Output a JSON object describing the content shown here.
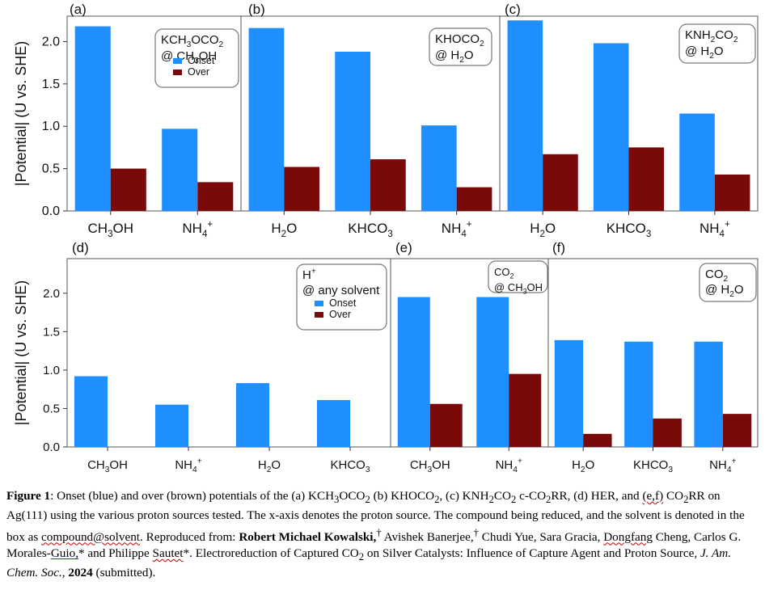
{
  "chart_data": {
    "ylabel": "|Potential| (U vs. SHE)",
    "colors": {
      "onset": "#1f8fff",
      "over": "#7a0a0a",
      "axis": "#555555"
    },
    "legend_labels": {
      "onset": "Onset",
      "over": "Over"
    },
    "rows": [
      {
        "ylim": [
          0,
          2.3
        ],
        "yticks": [
          "0.0",
          "0.5",
          "1.0",
          "1.5",
          "2.0"
        ],
        "panels": [
          {
            "label": "(a)",
            "box_lines": [
              [
                [
                  "KCH",
                  "n"
                ],
                [
                  "3",
                  "sub"
                ],
                [
                  "OCO",
                  "n"
                ],
                [
                  "2",
                  "sub"
                ]
              ],
              [
                [
                  "@ CH",
                  "n"
                ],
                [
                  "3",
                  "sub"
                ],
                [
                  "OH",
                  "n"
                ]
              ]
            ],
            "legend": true,
            "categories": [
              [
                [
                  "CH",
                  "n"
                ],
                [
                  "3",
                  "sub"
                ],
                [
                  "OH",
                  "n"
                ]
              ],
              [
                [
                  "NH",
                  "n"
                ],
                [
                  "4",
                  "sub"
                ],
                [
                  "+",
                  "sup"
                ]
              ]
            ],
            "onset": [
              2.18,
              0.97
            ],
            "over": [
              0.5,
              0.34
            ]
          },
          {
            "label": "(b)",
            "box_lines": [
              [
                [
                  "KHOCO",
                  "n"
                ],
                [
                  "2",
                  "sub"
                ]
              ],
              [
                [
                  "@ H",
                  "n"
                ],
                [
                  "2",
                  "sub"
                ],
                [
                  "O",
                  "n"
                ]
              ]
            ],
            "legend": false,
            "categories": [
              [
                [
                  "H",
                  "n"
                ],
                [
                  "2",
                  "sub"
                ],
                [
                  "O",
                  "n"
                ]
              ],
              [
                [
                  "KHCO",
                  "n"
                ],
                [
                  "3",
                  "sub"
                ]
              ],
              [
                [
                  "NH",
                  "n"
                ],
                [
                  "4",
                  "sub"
                ],
                [
                  "+",
                  "sup"
                ]
              ]
            ],
            "onset": [
              2.16,
              1.88,
              1.01
            ],
            "over": [
              0.52,
              0.61,
              0.28
            ]
          },
          {
            "label": "(c)",
            "box_lines": [
              [
                [
                  "KNH",
                  "n"
                ],
                [
                  "2",
                  "sub"
                ],
                [
                  "CO",
                  "n"
                ],
                [
                  "2",
                  "sub"
                ]
              ],
              [
                [
                  "@ H",
                  "n"
                ],
                [
                  "2",
                  "sub"
                ],
                [
                  "O",
                  "n"
                ]
              ]
            ],
            "legend": false,
            "categories": [
              [
                [
                  "H",
                  "n"
                ],
                [
                  "2",
                  "sub"
                ],
                [
                  "O",
                  "n"
                ]
              ],
              [
                [
                  "KHCO",
                  "n"
                ],
                [
                  "3",
                  "sub"
                ]
              ],
              [
                [
                  "NH",
                  "n"
                ],
                [
                  "4",
                  "sub"
                ],
                [
                  "+",
                  "sup"
                ]
              ]
            ],
            "onset": [
              2.25,
              1.98,
              1.15
            ],
            "over": [
              0.67,
              0.75,
              0.43
            ]
          }
        ]
      },
      {
        "ylim": [
          0,
          2.45
        ],
        "yticks": [
          "0.0",
          "0.5",
          "1.0",
          "1.5",
          "2.0"
        ],
        "panels": [
          {
            "label": "(d)",
            "box_lines": [
              [
                [
                  "H",
                  "n"
                ],
                [
                  "+",
                  "sup"
                ]
              ],
              [
                [
                  "@ any solvent",
                  "n"
                ]
              ]
            ],
            "legend": true,
            "categories": [
              [
                [
                  "CH",
                  "n"
                ],
                [
                  "3",
                  "sub"
                ],
                [
                  "OH",
                  "n"
                ]
              ],
              [
                [
                  "NH",
                  "n"
                ],
                [
                  "4",
                  "sub"
                ],
                [
                  "+",
                  "sup"
                ]
              ],
              [
                [
                  "H",
                  "n"
                ],
                [
                  "2",
                  "sub"
                ],
                [
                  "O",
                  "n"
                ]
              ],
              [
                [
                  "KHCO",
                  "n"
                ],
                [
                  "3",
                  "sub"
                ]
              ]
            ],
            "onset": [
              0.92,
              0.55,
              0.83,
              0.61
            ],
            "over": [
              0,
              0,
              0,
              0
            ]
          },
          {
            "label": "(e)",
            "box_lines": [
              [
                [
                  "CO",
                  "n"
                ],
                [
                  "2",
                  "sub"
                ]
              ],
              [
                [
                  "@ CH",
                  "n"
                ],
                [
                  "3",
                  "sub"
                ],
                [
                  "OH",
                  "n"
                ]
              ]
            ],
            "legend": false,
            "categories": [
              [
                [
                  "CH",
                  "n"
                ],
                [
                  "3",
                  "sub"
                ],
                [
                  "OH",
                  "n"
                ]
              ],
              [
                [
                  "NH",
                  "n"
                ],
                [
                  "4",
                  "sub"
                ],
                [
                  "+",
                  "sup"
                ]
              ]
            ],
            "onset": [
              1.95,
              1.95
            ],
            "over": [
              0.56,
              0.95
            ]
          },
          {
            "label": "(f)",
            "box_lines": [
              [
                [
                  "CO",
                  "n"
                ],
                [
                  "2",
                  "sub"
                ]
              ],
              [
                [
                  "@ H",
                  "n"
                ],
                [
                  "2",
                  "sub"
                ],
                [
                  "O",
                  "n"
                ]
              ]
            ],
            "legend": false,
            "categories": [
              [
                [
                  "H",
                  "n"
                ],
                [
                  "2",
                  "sub"
                ],
                [
                  "O",
                  "n"
                ]
              ],
              [
                [
                  "KHCO",
                  "n"
                ],
                [
                  "3",
                  "sub"
                ]
              ],
              [
                [
                  "NH",
                  "n"
                ],
                [
                  "4",
                  "sub"
                ],
                [
                  "+",
                  "sup"
                ]
              ]
            ],
            "onset": [
              1.39,
              1.37,
              1.37
            ],
            "over": [
              0.17,
              0.37,
              0.43
            ]
          }
        ]
      }
    ]
  },
  "caption": {
    "fig_label": "Figure 1",
    "p1": ": Onset (blue) and over (brown) potentials of the (a) KCH",
    "p1_sub1": "3",
    "p2": "OCO",
    "p2_sub": "2",
    "p3": " (b) KHOCO",
    "p3_sub": "2",
    "p4": ", (c) KNH",
    "p4_sub1": "2",
    "p5": "CO",
    "p5_sub": "2",
    "p6": " c-CO",
    "p6_sub": "2",
    "p7": "RR, (d) HER, and ",
    "p7_ef": "(e,f)",
    "p8": " CO",
    "p8_sub": "2",
    "p9": "RR on Ag(111) using the various proton sources tested. The x-axis denotes the proton source. The compound being reduced, and the solvent is denoted in the box as ",
    "p9_cs": "compound@solvent",
    "p10": ". Reproduced from: ",
    "author_bold": "Robert Michael Kowalski,",
    "dagger1": "†",
    "p11": " Avishek Banerjee,",
    "dagger2": "†",
    "p12": " Chudi Yue, Sara Gracia, ",
    "p12_dc": "Dongfang",
    "p13": " Cheng, Carlos G. Morales-",
    "p13_guio": "Guio,",
    "p14": "* and Philippe ",
    "p14_sautet": "Sautet",
    "p15": "*. Electroreduction of Captured CO",
    "p15_sub": "2",
    "p16": " on Silver Catalysts: Influence of Capture Agent and Proton Source",
    "journal": ", J. Am. Chem. Soc.",
    "p17": ", ",
    "year": "2024",
    "p18": " (submitted)."
  }
}
